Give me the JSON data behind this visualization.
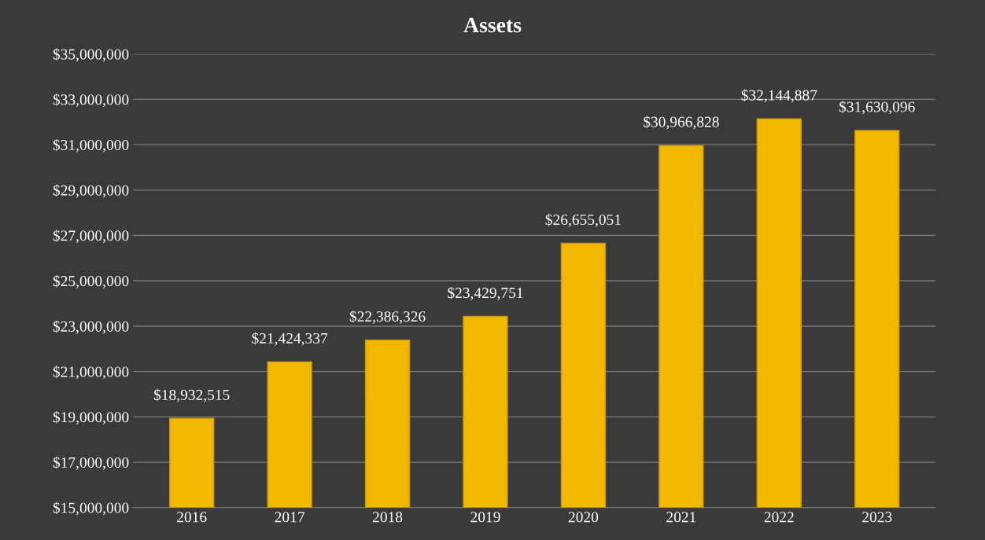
{
  "chart_data": {
    "type": "bar",
    "title": "Assets",
    "categories": [
      "2016",
      "2017",
      "2018",
      "2019",
      "2020",
      "2021",
      "2022",
      "2023"
    ],
    "values": [
      18932515,
      21424337,
      22386326,
      23429751,
      26655051,
      30966828,
      32144887,
      31630096
    ],
    "value_labels": [
      "$18,932,515",
      "$21,424,337",
      "$22,386,326",
      "$23,429,751",
      "$26,655,051",
      "$30,966,828",
      "$32,144,887",
      "$31,630,096"
    ],
    "color": "#f2b800",
    "ylim": [
      15000000,
      35000000
    ],
    "yticks": [
      {
        "value": 15000000,
        "label": "$15,000,000"
      },
      {
        "value": 17000000,
        "label": "$17,000,000"
      },
      {
        "value": 19000000,
        "label": "$19,000,000"
      },
      {
        "value": 21000000,
        "label": "$21,000,000"
      },
      {
        "value": 23000000,
        "label": "$23,000,000"
      },
      {
        "value": 25000000,
        "label": "$25,000,000"
      },
      {
        "value": 27000000,
        "label": "$27,000,000"
      },
      {
        "value": 29000000,
        "label": "$29,000,000"
      },
      {
        "value": 31000000,
        "label": "$31,000,000"
      },
      {
        "value": 33000000,
        "label": "$33,000,000"
      },
      {
        "value": 35000000,
        "label": "$35,000,000"
      }
    ],
    "grid": "y",
    "legend": false
  }
}
